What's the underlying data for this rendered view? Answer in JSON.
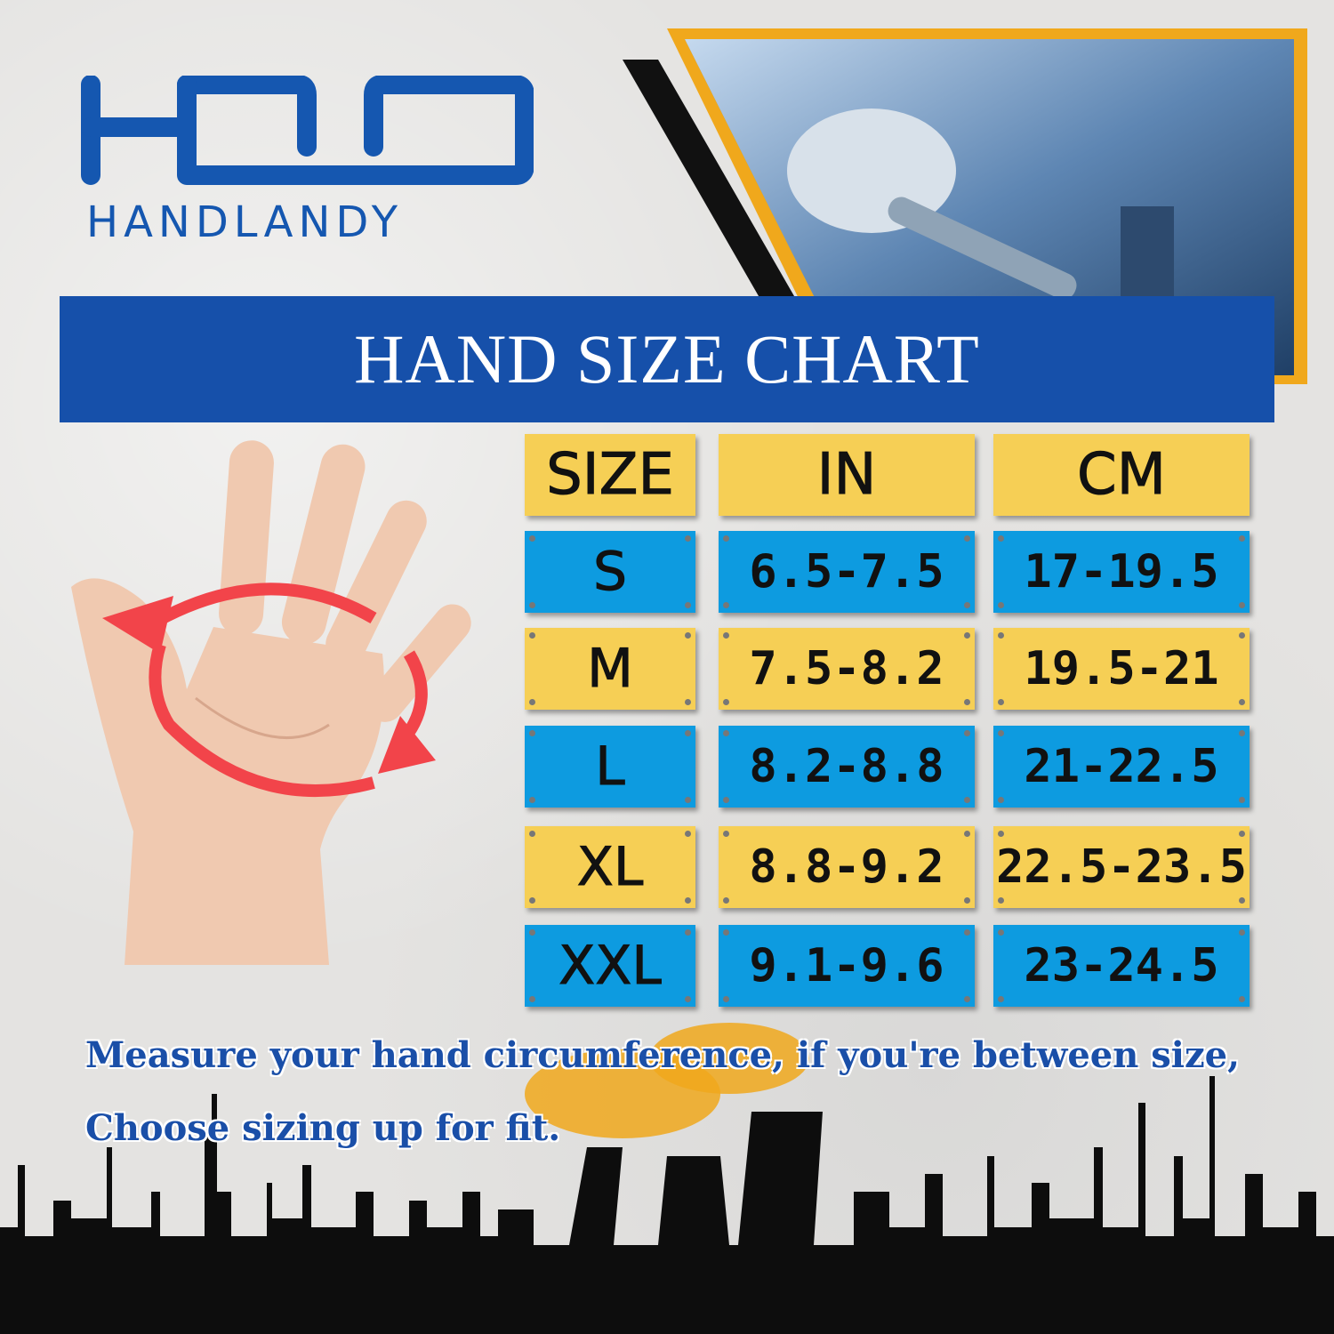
{
  "brand": {
    "name": "HANDLANDY",
    "logo_mark": "HND",
    "color": "#1557b0"
  },
  "banner": {
    "title": "HAND SIZE CHART",
    "color": "#1650aa"
  },
  "table": {
    "headers": [
      "SIZE",
      "IN",
      "CM"
    ],
    "rows": [
      {
        "size": "S",
        "in": "6.5-7.5",
        "cm": "17-19.5"
      },
      {
        "size": "M",
        "in": "7.5-8.2",
        "cm": "19.5-21"
      },
      {
        "size": "L",
        "in": "8.2-8.8",
        "cm": "21-22.5"
      },
      {
        "size": "XL",
        "in": "8.8-9.2",
        "cm": "22.5-23.5"
      },
      {
        "size": "XXL",
        "in": "9.1-9.6",
        "cm": "23-24.5"
      }
    ],
    "colors": {
      "yellow": "#f6cf55",
      "blue": "#0d9be0"
    }
  },
  "note": {
    "line1": "Measure your hand circumference, if you're between size,",
    "line2": "Choose sizing up for fit."
  }
}
